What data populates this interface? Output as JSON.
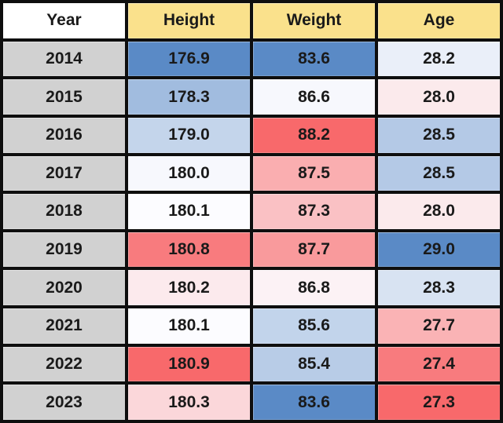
{
  "table": {
    "columns": [
      {
        "label": "Year",
        "header_bg": "#FFFFFF"
      },
      {
        "label": "Height",
        "header_bg": "#FAE18C"
      },
      {
        "label": "Weight",
        "header_bg": "#FAE18C"
      },
      {
        "label": "Age",
        "header_bg": "#FAE18C"
      }
    ],
    "rows": [
      {
        "year": "2014",
        "values": [
          {
            "text": "176.9",
            "bg": "#5A8AC6"
          },
          {
            "text": "83.6",
            "bg": "#5A8AC6"
          },
          {
            "text": "28.2",
            "bg": "#EAEFF9"
          }
        ]
      },
      {
        "year": "2015",
        "values": [
          {
            "text": "178.3",
            "bg": "#A1BCDF"
          },
          {
            "text": "86.6",
            "bg": "#F7F8FD"
          },
          {
            "text": "28.0",
            "bg": "#FBEAEC"
          }
        ]
      },
      {
        "year": "2016",
        "values": [
          {
            "text": "179.0",
            "bg": "#C4D5EB"
          },
          {
            "text": "88.2",
            "bg": "#F8696B"
          },
          {
            "text": "28.5",
            "bg": "#B4C9E6"
          }
        ]
      },
      {
        "year": "2017",
        "values": [
          {
            "text": "180.0",
            "bg": "#F7F8FD"
          },
          {
            "text": "87.5",
            "bg": "#FAAEB0"
          },
          {
            "text": "28.5",
            "bg": "#B4C9E6"
          }
        ]
      },
      {
        "year": "2018",
        "values": [
          {
            "text": "180.1",
            "bg": "#FCFCFF"
          },
          {
            "text": "87.3",
            "bg": "#FAC1C4"
          },
          {
            "text": "28.0",
            "bg": "#FBEAEC"
          }
        ]
      },
      {
        "year": "2019",
        "values": [
          {
            "text": "180.8",
            "bg": "#F87B7E"
          },
          {
            "text": "87.7",
            "bg": "#F99A9C"
          },
          {
            "text": "29.0",
            "bg": "#5A8AC6"
          }
        ]
      },
      {
        "year": "2020",
        "values": [
          {
            "text": "180.2",
            "bg": "#FCEAED"
          },
          {
            "text": "86.8",
            "bg": "#FCF2F5"
          },
          {
            "text": "28.3",
            "bg": "#D8E3F2"
          }
        ]
      },
      {
        "year": "2021",
        "values": [
          {
            "text": "180.1",
            "bg": "#FCFCFF"
          },
          {
            "text": "85.6",
            "bg": "#C2D4EB"
          },
          {
            "text": "27.7",
            "bg": "#FAB3B5"
          }
        ]
      },
      {
        "year": "2022",
        "values": [
          {
            "text": "180.9",
            "bg": "#F8696B"
          },
          {
            "text": "85.4",
            "bg": "#B8CCE7"
          },
          {
            "text": "27.4",
            "bg": "#F87B7E"
          }
        ]
      },
      {
        "year": "2023",
        "values": [
          {
            "text": "180.3",
            "bg": "#FBD7DA"
          },
          {
            "text": "83.6",
            "bg": "#5A8AC6"
          },
          {
            "text": "27.3",
            "bg": "#F8696B"
          }
        ]
      }
    ]
  },
  "colors": {
    "year_bg": "#D1D1D1",
    "header_yellow": "#FAE18C",
    "header_white": "#FFFFFF",
    "grid_border": "#0E0E0E",
    "text": "#1A1A1A",
    "scale_low_blue": "#5A8AC6",
    "scale_mid_white": "#FCFCFF",
    "scale_high_red": "#F8696B"
  },
  "chart_data": {
    "type": "table",
    "columns": [
      "Year",
      "Height",
      "Weight",
      "Age"
    ],
    "rows": [
      [
        2014,
        176.9,
        83.6,
        28.2
      ],
      [
        2015,
        178.3,
        86.6,
        28.0
      ],
      [
        2016,
        179.0,
        88.2,
        28.5
      ],
      [
        2017,
        180.0,
        87.5,
        28.5
      ],
      [
        2018,
        180.1,
        87.3,
        28.0
      ],
      [
        2019,
        180.8,
        87.7,
        29.0
      ],
      [
        2020,
        180.2,
        86.8,
        28.3
      ],
      [
        2021,
        180.1,
        85.6,
        27.7
      ],
      [
        2022,
        180.9,
        85.4,
        27.4
      ],
      [
        2023,
        180.3,
        83.6,
        27.3
      ]
    ],
    "title": "",
    "notes": "Conditional formatting 3-color scale blue #5A8AC6 / white #FCFCFF / red #F8696B. Height and Weight columns: blue = low, red = high. Age column: red = low, blue = high. Year cells gray, headers yellow except white Year header."
  }
}
